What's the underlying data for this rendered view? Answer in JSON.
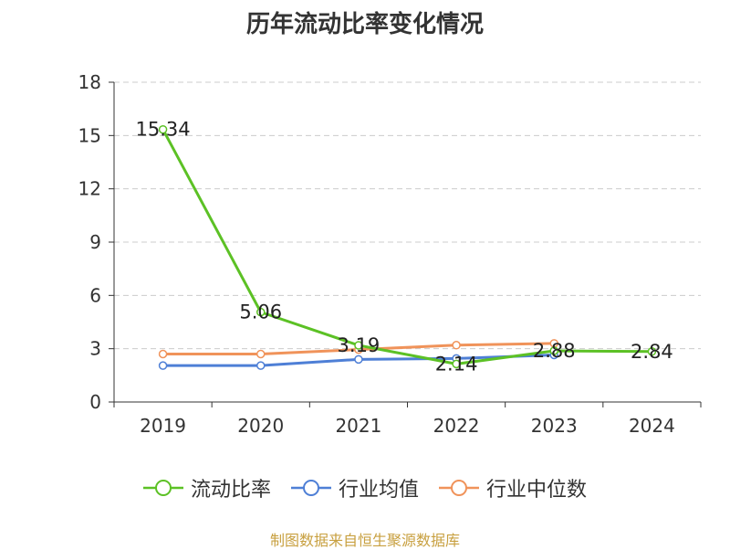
{
  "chart_data": {
    "type": "line",
    "title": "历年流动比率变化情况",
    "categories": [
      "2019",
      "2020",
      "2021",
      "2022",
      "2023",
      "2024"
    ],
    "ylim": [
      0,
      18
    ],
    "yticks": [
      0,
      3,
      6,
      9,
      12,
      15,
      18
    ],
    "grid": true,
    "legend_position": "bottom",
    "series": [
      {
        "name": "流动比率",
        "color": "#5cc125",
        "values": [
          15.34,
          5.06,
          3.19,
          2.14,
          2.88,
          2.84
        ],
        "labels": [
          "15.34",
          "5.06",
          "3.19",
          "2.14",
          "2.88",
          "2.84"
        ]
      },
      {
        "name": "行业均值",
        "color": "#4e7fd6",
        "values": [
          2.05,
          2.05,
          2.4,
          2.45,
          2.65,
          null
        ]
      },
      {
        "name": "行业中位数",
        "color": "#f0935a",
        "values": [
          2.7,
          2.7,
          2.95,
          3.2,
          3.3,
          null
        ]
      }
    ]
  },
  "footer": {
    "source": "制图数据来自恒生聚源数据库"
  }
}
